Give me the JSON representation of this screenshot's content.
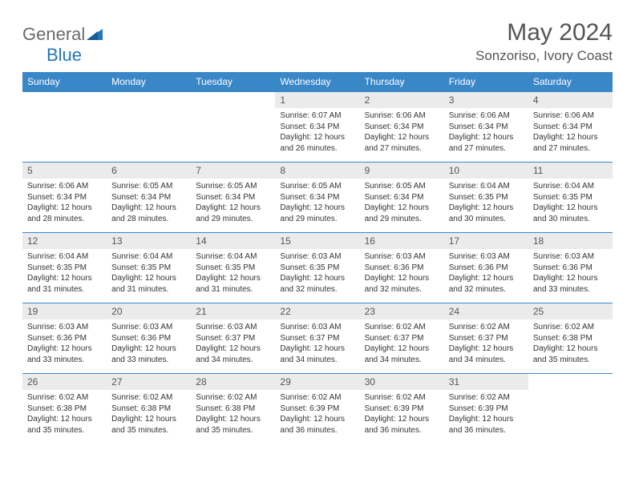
{
  "logo": {
    "part1": "General",
    "part2": "Blue"
  },
  "title": "May 2024",
  "location": "Sonzoriso, Ivory Coast",
  "colors": {
    "header_bg": "#3a87c8",
    "header_text": "#ffffff",
    "daynum_bg": "#ebebeb",
    "border": "#3a87c8",
    "logo_gray": "#6b6b6b",
    "logo_blue": "#2176bd"
  },
  "weekdays": [
    "Sunday",
    "Monday",
    "Tuesday",
    "Wednesday",
    "Thursday",
    "Friday",
    "Saturday"
  ],
  "weeks": [
    [
      null,
      null,
      null,
      {
        "n": "1",
        "sr": "Sunrise: 6:07 AM",
        "ss": "Sunset: 6:34 PM",
        "dl1": "Daylight: 12 hours",
        "dl2": "and 26 minutes."
      },
      {
        "n": "2",
        "sr": "Sunrise: 6:06 AM",
        "ss": "Sunset: 6:34 PM",
        "dl1": "Daylight: 12 hours",
        "dl2": "and 27 minutes."
      },
      {
        "n": "3",
        "sr": "Sunrise: 6:06 AM",
        "ss": "Sunset: 6:34 PM",
        "dl1": "Daylight: 12 hours",
        "dl2": "and 27 minutes."
      },
      {
        "n": "4",
        "sr": "Sunrise: 6:06 AM",
        "ss": "Sunset: 6:34 PM",
        "dl1": "Daylight: 12 hours",
        "dl2": "and 27 minutes."
      }
    ],
    [
      {
        "n": "5",
        "sr": "Sunrise: 6:06 AM",
        "ss": "Sunset: 6:34 PM",
        "dl1": "Daylight: 12 hours",
        "dl2": "and 28 minutes."
      },
      {
        "n": "6",
        "sr": "Sunrise: 6:05 AM",
        "ss": "Sunset: 6:34 PM",
        "dl1": "Daylight: 12 hours",
        "dl2": "and 28 minutes."
      },
      {
        "n": "7",
        "sr": "Sunrise: 6:05 AM",
        "ss": "Sunset: 6:34 PM",
        "dl1": "Daylight: 12 hours",
        "dl2": "and 29 minutes."
      },
      {
        "n": "8",
        "sr": "Sunrise: 6:05 AM",
        "ss": "Sunset: 6:34 PM",
        "dl1": "Daylight: 12 hours",
        "dl2": "and 29 minutes."
      },
      {
        "n": "9",
        "sr": "Sunrise: 6:05 AM",
        "ss": "Sunset: 6:34 PM",
        "dl1": "Daylight: 12 hours",
        "dl2": "and 29 minutes."
      },
      {
        "n": "10",
        "sr": "Sunrise: 6:04 AM",
        "ss": "Sunset: 6:35 PM",
        "dl1": "Daylight: 12 hours",
        "dl2": "and 30 minutes."
      },
      {
        "n": "11",
        "sr": "Sunrise: 6:04 AM",
        "ss": "Sunset: 6:35 PM",
        "dl1": "Daylight: 12 hours",
        "dl2": "and 30 minutes."
      }
    ],
    [
      {
        "n": "12",
        "sr": "Sunrise: 6:04 AM",
        "ss": "Sunset: 6:35 PM",
        "dl1": "Daylight: 12 hours",
        "dl2": "and 31 minutes."
      },
      {
        "n": "13",
        "sr": "Sunrise: 6:04 AM",
        "ss": "Sunset: 6:35 PM",
        "dl1": "Daylight: 12 hours",
        "dl2": "and 31 minutes."
      },
      {
        "n": "14",
        "sr": "Sunrise: 6:04 AM",
        "ss": "Sunset: 6:35 PM",
        "dl1": "Daylight: 12 hours",
        "dl2": "and 31 minutes."
      },
      {
        "n": "15",
        "sr": "Sunrise: 6:03 AM",
        "ss": "Sunset: 6:35 PM",
        "dl1": "Daylight: 12 hours",
        "dl2": "and 32 minutes."
      },
      {
        "n": "16",
        "sr": "Sunrise: 6:03 AM",
        "ss": "Sunset: 6:36 PM",
        "dl1": "Daylight: 12 hours",
        "dl2": "and 32 minutes."
      },
      {
        "n": "17",
        "sr": "Sunrise: 6:03 AM",
        "ss": "Sunset: 6:36 PM",
        "dl1": "Daylight: 12 hours",
        "dl2": "and 32 minutes."
      },
      {
        "n": "18",
        "sr": "Sunrise: 6:03 AM",
        "ss": "Sunset: 6:36 PM",
        "dl1": "Daylight: 12 hours",
        "dl2": "and 33 minutes."
      }
    ],
    [
      {
        "n": "19",
        "sr": "Sunrise: 6:03 AM",
        "ss": "Sunset: 6:36 PM",
        "dl1": "Daylight: 12 hours",
        "dl2": "and 33 minutes."
      },
      {
        "n": "20",
        "sr": "Sunrise: 6:03 AM",
        "ss": "Sunset: 6:36 PM",
        "dl1": "Daylight: 12 hours",
        "dl2": "and 33 minutes."
      },
      {
        "n": "21",
        "sr": "Sunrise: 6:03 AM",
        "ss": "Sunset: 6:37 PM",
        "dl1": "Daylight: 12 hours",
        "dl2": "and 34 minutes."
      },
      {
        "n": "22",
        "sr": "Sunrise: 6:03 AM",
        "ss": "Sunset: 6:37 PM",
        "dl1": "Daylight: 12 hours",
        "dl2": "and 34 minutes."
      },
      {
        "n": "23",
        "sr": "Sunrise: 6:02 AM",
        "ss": "Sunset: 6:37 PM",
        "dl1": "Daylight: 12 hours",
        "dl2": "and 34 minutes."
      },
      {
        "n": "24",
        "sr": "Sunrise: 6:02 AM",
        "ss": "Sunset: 6:37 PM",
        "dl1": "Daylight: 12 hours",
        "dl2": "and 34 minutes."
      },
      {
        "n": "25",
        "sr": "Sunrise: 6:02 AM",
        "ss": "Sunset: 6:38 PM",
        "dl1": "Daylight: 12 hours",
        "dl2": "and 35 minutes."
      }
    ],
    [
      {
        "n": "26",
        "sr": "Sunrise: 6:02 AM",
        "ss": "Sunset: 6:38 PM",
        "dl1": "Daylight: 12 hours",
        "dl2": "and 35 minutes."
      },
      {
        "n": "27",
        "sr": "Sunrise: 6:02 AM",
        "ss": "Sunset: 6:38 PM",
        "dl1": "Daylight: 12 hours",
        "dl2": "and 35 minutes."
      },
      {
        "n": "28",
        "sr": "Sunrise: 6:02 AM",
        "ss": "Sunset: 6:38 PM",
        "dl1": "Daylight: 12 hours",
        "dl2": "and 35 minutes."
      },
      {
        "n": "29",
        "sr": "Sunrise: 6:02 AM",
        "ss": "Sunset: 6:39 PM",
        "dl1": "Daylight: 12 hours",
        "dl2": "and 36 minutes."
      },
      {
        "n": "30",
        "sr": "Sunrise: 6:02 AM",
        "ss": "Sunset: 6:39 PM",
        "dl1": "Daylight: 12 hours",
        "dl2": "and 36 minutes."
      },
      {
        "n": "31",
        "sr": "Sunrise: 6:02 AM",
        "ss": "Sunset: 6:39 PM",
        "dl1": "Daylight: 12 hours",
        "dl2": "and 36 minutes."
      },
      null
    ]
  ]
}
